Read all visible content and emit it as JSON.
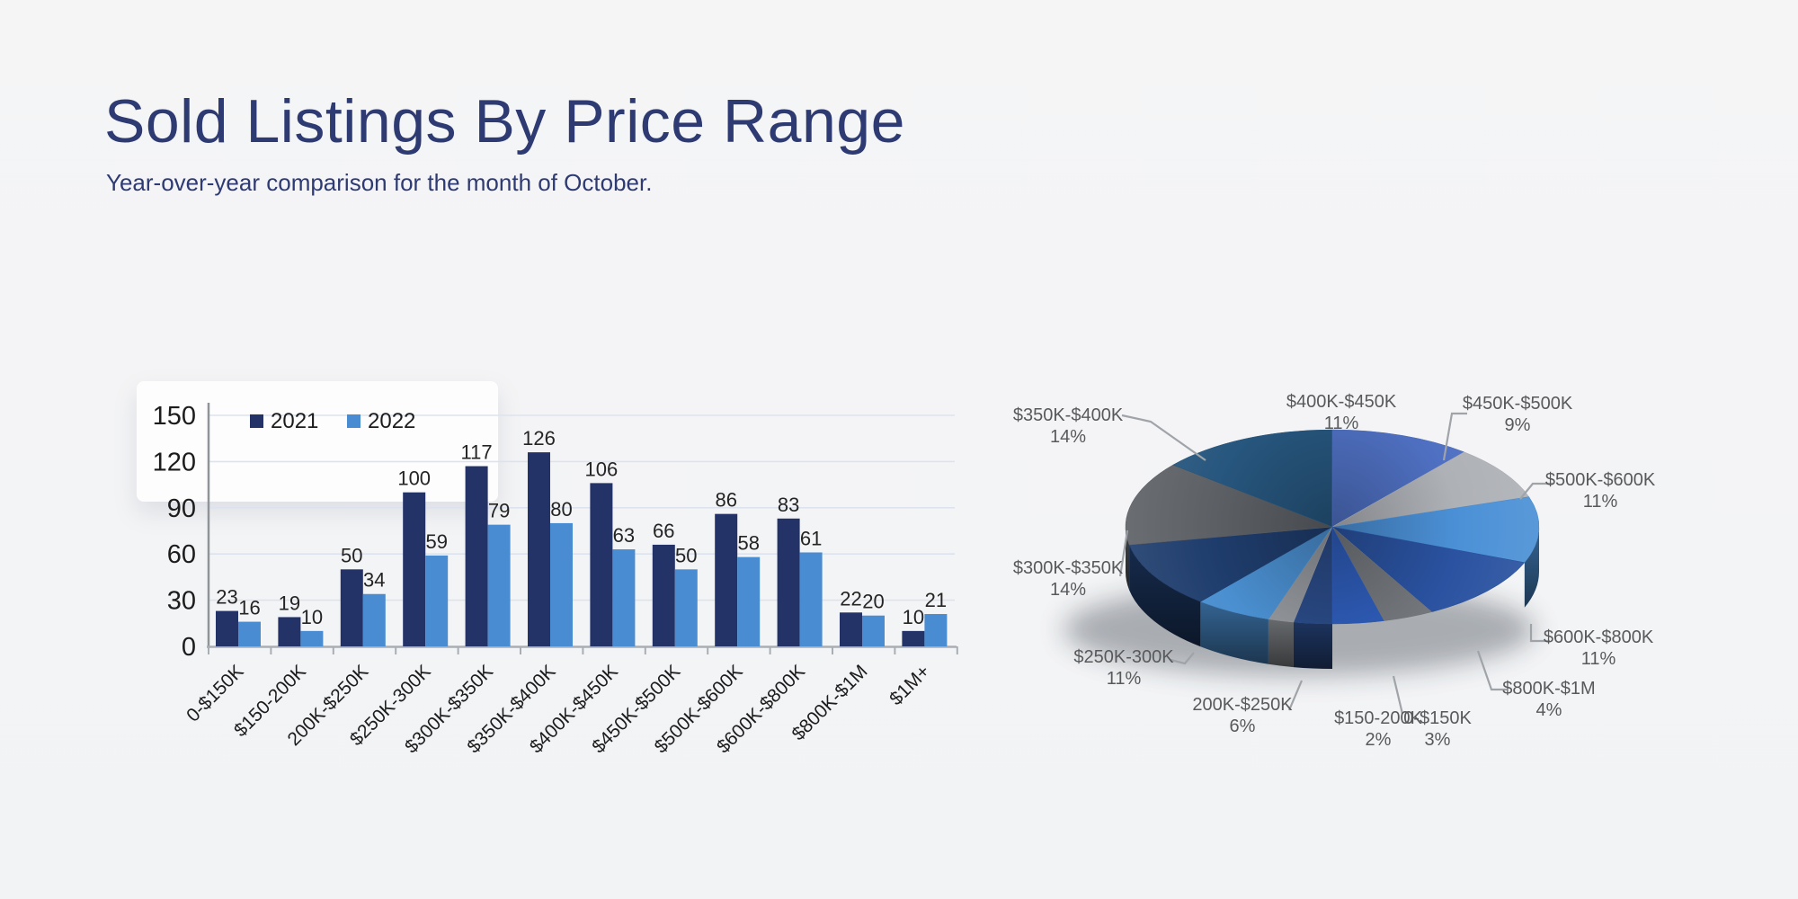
{
  "page": {
    "title": "Sold Listings By Price Range",
    "subtitle": "Year-over-year comparison for the month of October.",
    "title_color": "#2e3a72",
    "background": "#f3f4f5"
  },
  "chart_data": [
    {
      "type": "bar",
      "name": "sold-listings-by-price-range-bar-chart",
      "title": "",
      "categories": [
        "0-$150K",
        "$150-200K",
        "200K-$250K",
        "$250K-300K",
        "$300K-$350K",
        "$350K-$400K",
        "$400K-$450K",
        "$450K-$500K",
        "$500K-$600K",
        "$600K-$800K",
        "$800K-$1M",
        "$1M+"
      ],
      "series": [
        {
          "name": "2021",
          "color": "#243367",
          "values": [
            23,
            19,
            50,
            100,
            117,
            126,
            106,
            66,
            86,
            83,
            22,
            10
          ]
        },
        {
          "name": "2022",
          "color": "#4a8cd1",
          "values": [
            16,
            10,
            34,
            59,
            79,
            80,
            63,
            50,
            58,
            61,
            20,
            21
          ]
        }
      ],
      "ylim": [
        0,
        150
      ],
      "yticks": [
        0,
        30,
        60,
        90,
        120,
        150
      ],
      "grid": true,
      "legend_position": "top-inside",
      "bar_value_labels": true
    },
    {
      "type": "pie",
      "name": "sold-listings-2022-share-pie-chart",
      "style": "3d",
      "start_angle_deg": 180,
      "direction": "clockwise",
      "labels_show_percent": true,
      "slices": [
        {
          "label": "0-$150K",
          "pct": 3,
          "color": "#2a4a86",
          "labeled": true
        },
        {
          "label": "$150-200K",
          "pct": 2,
          "color": "#93979c",
          "labeled": true
        },
        {
          "label": "200K-$250K",
          "pct": 6,
          "color": "#4a8fd0",
          "labeled": true
        },
        {
          "label": "$250K-300K",
          "pct": 11,
          "color": "#1f3d6d",
          "labeled": true
        },
        {
          "label": "$300K-$350K",
          "pct": 14,
          "color": "#5d6166",
          "labeled": true
        },
        {
          "label": "$350K-$400K",
          "pct": 14,
          "color": "#27567e",
          "labeled": true
        },
        {
          "label": "$400K-$450K",
          "pct": 11,
          "color": "#4f70c2",
          "labeled": true
        },
        {
          "label": "$450K-$500K",
          "pct": 9,
          "color": "#aeb1b6",
          "labeled": true
        },
        {
          "label": "$500K-$600K",
          "pct": 11,
          "color": "#4b90d6",
          "labeled": true
        },
        {
          "label": "$600K-$800K",
          "pct": 11,
          "color": "#2a52a0",
          "labeled": true
        },
        {
          "label": "$800K-$1M",
          "pct": 4,
          "color": "#73777c",
          "labeled": true
        },
        {
          "label": "$1M+",
          "pct": 4,
          "color": "#2e5cb8",
          "labeled": false
        }
      ]
    }
  ]
}
